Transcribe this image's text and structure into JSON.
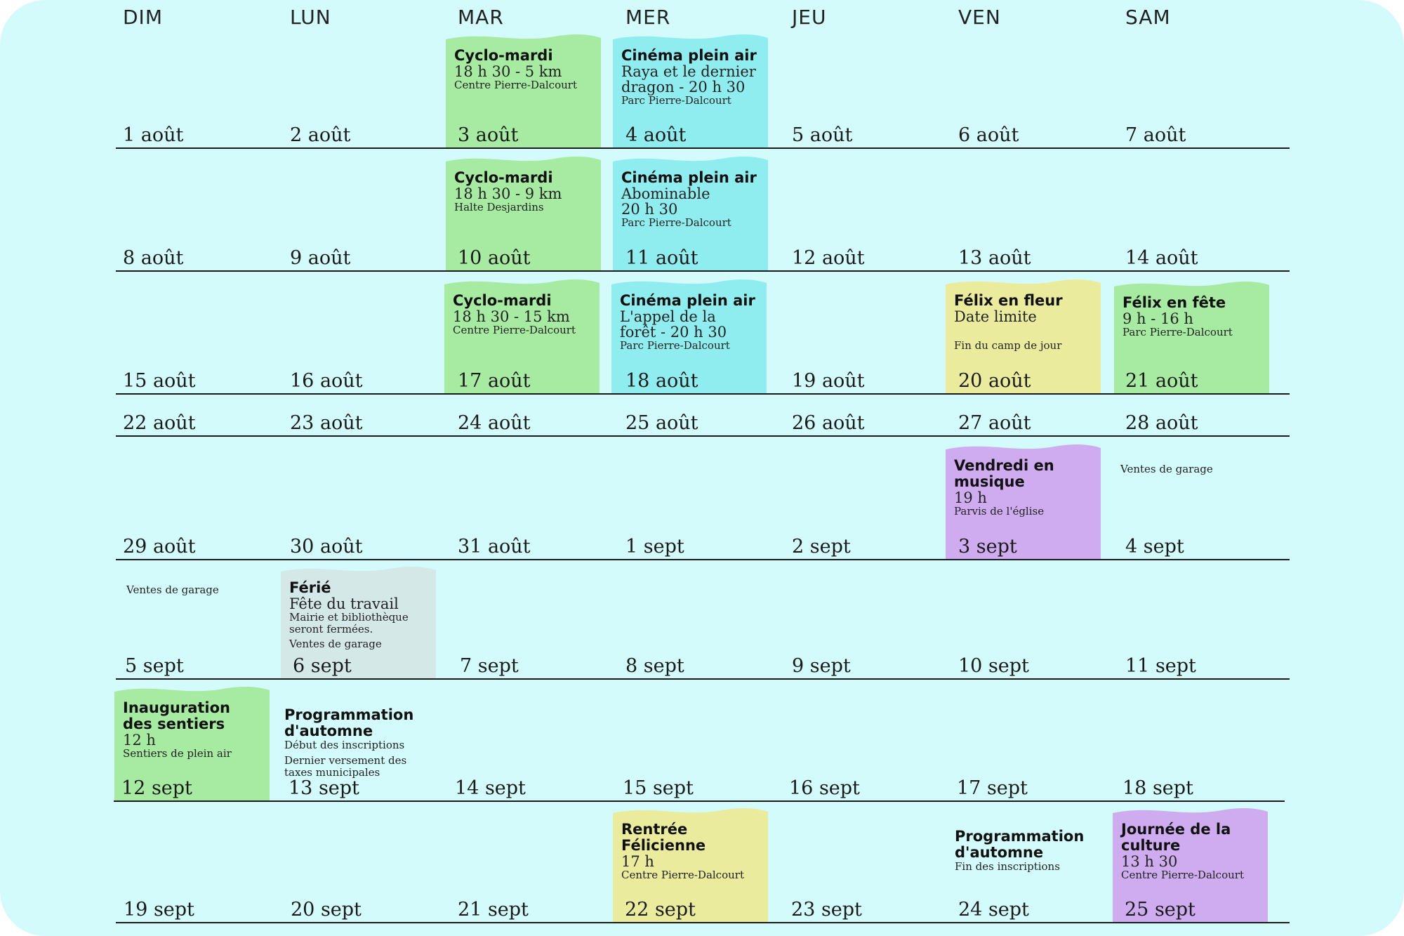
{
  "days": [
    "DIM",
    "LUN",
    "MAR",
    "MER",
    "JEU",
    "VEN",
    "SAM"
  ],
  "weeks": [
    {
      "dates": [
        "1 août",
        "2 août",
        "3 août",
        "4 août",
        "5 août",
        "6 août",
        "7 août"
      ]
    },
    {
      "dates": [
        "8 août",
        "9 août",
        "10 août",
        "11 août",
        "12 août",
        "13 août",
        "14 août"
      ]
    },
    {
      "dates": [
        "15 août",
        "16 août",
        "17 août",
        "18 août",
        "19 août",
        "20 août",
        "21 août"
      ]
    },
    {
      "dates": [
        "22 août",
        "23 août",
        "24 août",
        "25 août",
        "26 août",
        "27 août",
        "28 août"
      ]
    },
    {
      "dates": [
        "29 août",
        "30 août",
        "31 août",
        "1 sept",
        "2 sept",
        "3 sept",
        "4 sept"
      ]
    },
    {
      "dates": [
        "5 sept",
        "6 sept",
        "7 sept",
        "8 sept",
        "9 sept",
        "10 sept",
        "11 sept"
      ]
    },
    {
      "dates": [
        "12 sept",
        "13 sept",
        "14 sept",
        "15 sept",
        "16 sept",
        "17 sept",
        "18 sept"
      ]
    },
    {
      "dates": [
        "19 sept",
        "20 sept",
        "21 sept",
        "22 sept",
        "23 sept",
        "24 sept",
        "25 sept"
      ]
    }
  ],
  "events": [
    {
      "title": "Cyclo-mardi",
      "line1": "18 h 30 - 5 km",
      "line2": "Centre Pierre-Dalcourt",
      "color": "#a6eba1"
    },
    {
      "title": "Cinéma plein air",
      "line1": "Raya et le dernier dragon - 20 h 30",
      "line2": "Parc Pierre-Dalcourt",
      "color": "#90edef"
    },
    {
      "title": "Cyclo-mardi",
      "line1": "18 h 30 - 9 km",
      "line2": "Halte Desjardins",
      "color": "#a6eba1"
    },
    {
      "title": "Cinéma plein air",
      "line1": "Abominable 20 h 30",
      "line2": "Parc Pierre-Dalcourt",
      "color": "#90edef"
    },
    {
      "title": "Cyclo-mardi",
      "line1": "18 h 30 - 15 km",
      "line2": "Centre Pierre-Dalcourt",
      "color": "#a6eba1"
    },
    {
      "title": "Cinéma plein air",
      "line1": "L'appel de la forêt - 20 h 30",
      "line2": "Parc Pierre-Dalcourt",
      "color": "#90edef"
    },
    {
      "title": "Félix en fleur",
      "line1": "Date limite",
      "line2": "Fin du camp de jour",
      "color": "#ebeb9e"
    },
    {
      "title": "Félix en fête",
      "line1": "9 h - 16 h",
      "line2": "Parc Pierre-Dalcourt",
      "color": "#a6eba1"
    },
    {
      "title": "Vendredi en musique",
      "line1": "19 h",
      "line2": "Parvis de l'église",
      "color": "#cfacef"
    },
    {
      "title": "Férié",
      "line1": "Fête du travail",
      "line2": "Mairie et bibliothèque seront fermées.",
      "line3": "Ventes de garage",
      "color": "#d5e8e8"
    },
    {
      "title": "Inauguration des sentiers",
      "line1": "12 h",
      "line2": "Sentiers de plein air",
      "color": "#a6eba1"
    },
    {
      "title": "Rentrée Félicienne",
      "line1": "17 h",
      "line2": "Centre Pierre-Dalcourt",
      "color": "#ebeb9e"
    },
    {
      "title": "Journée de la culture",
      "line1": "13 h 30",
      "line2": "Centre Pierre-Dalcourt",
      "color": "#cfacef"
    }
  ],
  "plain_events": [
    {
      "title": "Programmation d'automne",
      "line1": "Début des inscriptions",
      "line2": "Dernier versement des taxes municipales"
    },
    {
      "title": "Programmation d'automne",
      "line1": "Fin des inscriptions"
    }
  ],
  "notes": [
    "Ventes de garage",
    "Ventes de garage"
  ]
}
